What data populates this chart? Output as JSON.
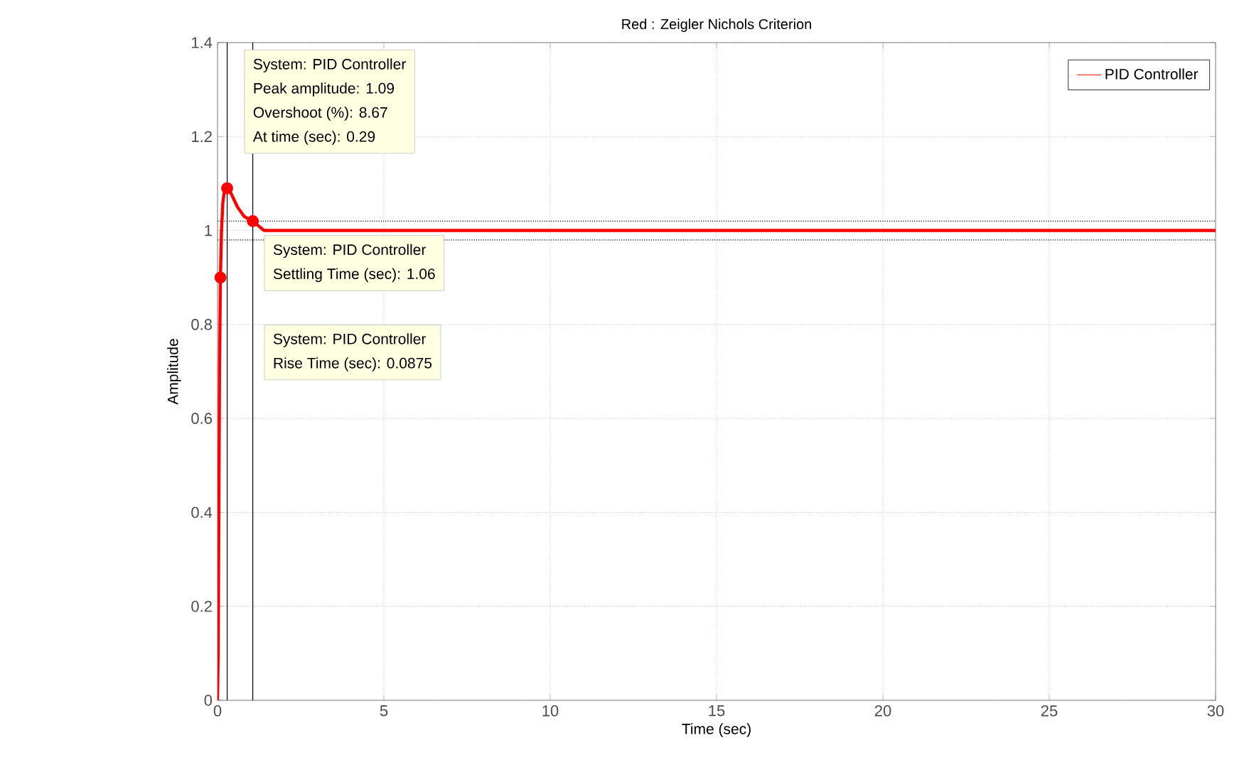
{
  "chart_data": {
    "type": "line",
    "title": "Red : Zeigler Nichols Criterion",
    "xlabel": "Time (sec)",
    "ylabel": "Amplitude",
    "xlim": [
      0,
      30
    ],
    "ylim": [
      0,
      1.4
    ],
    "xticks": [
      0,
      5,
      10,
      15,
      20,
      25,
      30
    ],
    "yticks": [
      0,
      0.2,
      0.4,
      0.6,
      0.8,
      1,
      1.2,
      1.4
    ],
    "grid": true,
    "legend": "top right",
    "line_style": "solid",
    "series": [
      {
        "type": "scatter",
        "color": "#ff0000",
        "x": [
          0.0875,
          0.29,
          1.06
        ],
        "values": [
          0.9,
          1.09,
          1.02
        ]
      },
      {
        "name": "PID Controller",
        "color": "#ff0000",
        "x": [
          0,
          0.02,
          0.04,
          0.06,
          0.0875,
          0.12,
          0.16,
          0.2,
          0.29,
          0.4,
          0.6,
          0.8,
          1.06,
          1.4,
          2,
          3,
          4,
          6,
          8,
          10,
          12,
          14,
          16,
          18,
          20,
          22,
          24,
          26,
          28,
          30
        ],
        "values": [
          0,
          0.1,
          0.4,
          0.7,
          0.9,
          1.0,
          1.06,
          1.08,
          1.09,
          1.08,
          1.05,
          1.03,
          1.02,
          1.0,
          1.0,
          1.0,
          1.0,
          1.0,
          1.0,
          1.0,
          1.0,
          1.0,
          1.0,
          1.0,
          1.0,
          1.0,
          1.0,
          1.0,
          1.0,
          1.0
        ]
      }
    ],
    "ref_lines": [
      {
        "axis": "y",
        "value": 0.98,
        "color": "#000000",
        "line_style": "dotted"
      },
      {
        "axis": "y",
        "value": 1.02,
        "color": "#000000",
        "line_style": "dotted"
      },
      {
        "axis": "x",
        "value": 0.29,
        "color": "#000000",
        "line_style": "solid"
      },
      {
        "axis": "x",
        "value": 1.06,
        "color": "#000000",
        "line_style": "solid"
      }
    ],
    "annotations": [
      "System: PID Controller",
      "Peak amplitude: 1.09",
      "Overshoot (%): 8.67",
      "At time (sec): 0.29",
      "System: PID Controller",
      "Settling Time (sec): 1.06",
      "System: PID Controller",
      "Rise Time (sec): 0.0875"
    ]
  }
}
